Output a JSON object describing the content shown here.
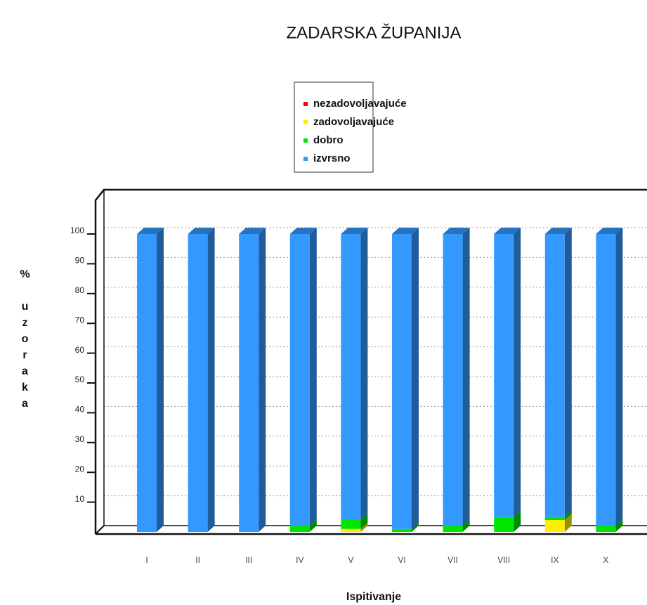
{
  "chart_data": {
    "type": "bar",
    "stacked": true,
    "three_d": true,
    "title": "ZADARSKA ŽUPANIJA",
    "xlabel": "Ispitivanje",
    "ylabel": "% uzoraka",
    "categories": [
      "I",
      "II",
      "III",
      "IV",
      "V",
      "VI",
      "VII",
      "VIII",
      "IX",
      "X"
    ],
    "series": [
      {
        "name": "nezadovoljavajuće",
        "color": "#ff0000",
        "values": [
          0,
          0,
          0,
          0,
          0,
          0,
          0,
          0,
          0,
          0
        ]
      },
      {
        "name": "zadovoljavajuće",
        "color": "#ffee00",
        "values": [
          0,
          0,
          0,
          0,
          1,
          0,
          0,
          0,
          4,
          0
        ]
      },
      {
        "name": "dobro",
        "color": "#00e600",
        "values": [
          0,
          0,
          0,
          2,
          3,
          1,
          2,
          5,
          1,
          2
        ]
      },
      {
        "name": "izvrsno",
        "color": "#3399ff",
        "values": [
          100,
          100,
          100,
          98,
          96,
          99,
          98,
          95,
          95,
          98
        ]
      }
    ],
    "ylim": [
      0,
      100
    ],
    "yticks": [
      10,
      20,
      30,
      40,
      50,
      60,
      70,
      80,
      90,
      100
    ],
    "grid": true,
    "legend": "top"
  }
}
